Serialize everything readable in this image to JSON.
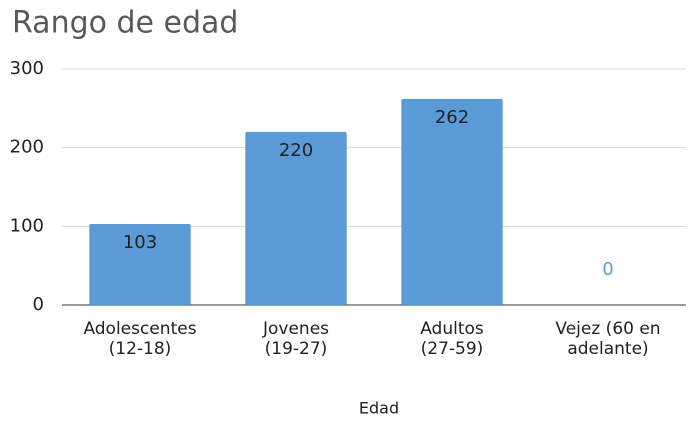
{
  "chart_data": {
    "type": "bar",
    "title": "Rango de edad",
    "x_label": "Edad",
    "categories": [
      "Adolescentes\n(12-18)",
      "Jovenes\n(19-27)",
      "Adultos\n(27-59)",
      "Vejez (60 en\nadelante)"
    ],
    "values": [
      103,
      220,
      262,
      0
    ],
    "color": "#5b9bd5",
    "ylim": [
      0,
      300
    ],
    "yticks": [
      0,
      100,
      200,
      300
    ],
    "grid": true
  }
}
